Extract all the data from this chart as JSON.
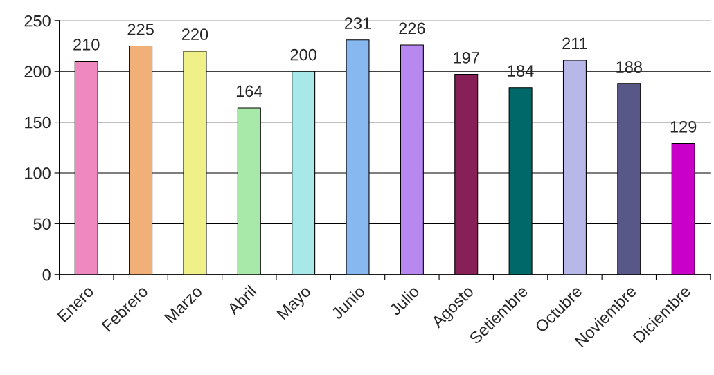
{
  "chart_data": {
    "type": "bar",
    "categories": [
      "Enero",
      "Febrero",
      "Marzo",
      "Abril",
      "Mayo",
      "Junio",
      "Julio",
      "Agosto",
      "Setiembre",
      "Octubre",
      "Noviembre",
      "Diciembre"
    ],
    "values": [
      210,
      225,
      220,
      164,
      200,
      231,
      226,
      197,
      184,
      211,
      188,
      129
    ],
    "colors": [
      "#f088c0",
      "#f0b078",
      "#f0f088",
      "#a8e8a8",
      "#a8e8e8",
      "#88b8f0",
      "#b888f0",
      "#882058",
      "#006868",
      "#b8b8e8",
      "#585888",
      "#c800c8"
    ],
    "ylim": [
      0,
      250
    ],
    "yticks": [
      0,
      50,
      100,
      150,
      200,
      250
    ],
    "grid": "y",
    "data_labels": true
  }
}
